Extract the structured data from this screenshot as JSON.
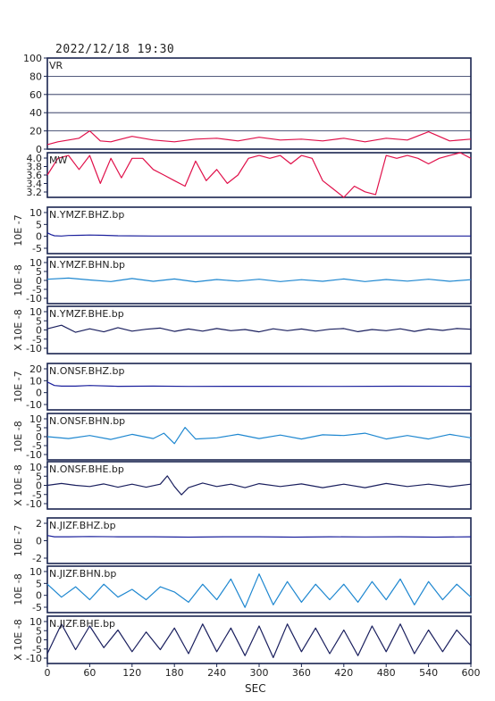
{
  "title": "2022/12/18 19:30",
  "xlabel": "SEC",
  "x_ticks": [
    "0",
    "60",
    "120",
    "180",
    "240",
    "300",
    "360",
    "420",
    "480",
    "540",
    "600"
  ],
  "chart_data": [
    {
      "type": "line",
      "name": "VR",
      "color": "#e0104a",
      "ylim": [
        0,
        100
      ],
      "yticks": [
        "100",
        "80",
        "60",
        "40",
        "20",
        "0"
      ],
      "side_label": "",
      "x": [
        0,
        15,
        30,
        45,
        60,
        75,
        90,
        120,
        150,
        180,
        210,
        240,
        270,
        300,
        330,
        360,
        390,
        420,
        450,
        480,
        510,
        540,
        570,
        600
      ],
      "values": [
        5,
        8,
        10,
        12,
        20,
        9,
        8,
        14,
        10,
        8,
        11,
        12,
        9,
        13,
        10,
        11,
        9,
        12,
        8,
        12,
        10,
        19,
        9,
        11
      ]
    },
    {
      "type": "line",
      "name": "MW",
      "color": "#e0104a",
      "ylim": [
        3.2,
        4.0
      ],
      "yticks": [
        "4.0",
        "3.8",
        "3.6",
        "3.4",
        "3.2"
      ],
      "side_label": "",
      "x": [
        0,
        15,
        30,
        45,
        60,
        75,
        90,
        105,
        120,
        135,
        150,
        165,
        180,
        195,
        210,
        225,
        240,
        255,
        270,
        285,
        300,
        315,
        330,
        345,
        360,
        375,
        390,
        405,
        420,
        435,
        450,
        465,
        480,
        495,
        510,
        525,
        540,
        555,
        570,
        585,
        600
      ],
      "values": [
        3.6,
        3.9,
        3.95,
        3.7,
        3.95,
        3.45,
        3.9,
        3.55,
        3.9,
        3.9,
        3.7,
        3.6,
        3.5,
        3.4,
        3.85,
        3.5,
        3.7,
        3.45,
        3.6,
        3.9,
        3.95,
        3.9,
        3.95,
        3.8,
        3.95,
        3.9,
        3.5,
        3.35,
        3.2,
        3.4,
        3.3,
        3.25,
        3.95,
        3.9,
        3.95,
        3.9,
        3.8,
        3.9,
        3.95,
        4.0,
        3.9
      ]
    },
    {
      "type": "line",
      "name": "N.YMZF.BHZ.bp",
      "color": "#1a1f9c",
      "ylim": [
        -7,
        12
      ],
      "yticks": [
        "10",
        "5",
        "0",
        "-5"
      ],
      "side_label": "10E -7",
      "x": [
        0,
        5,
        10,
        20,
        30,
        45,
        60,
        80,
        100,
        150,
        200,
        300,
        400,
        500,
        600
      ],
      "values": [
        1.5,
        0.8,
        0.3,
        0.2,
        0.4,
        0.5,
        0.6,
        0.5,
        0.3,
        0.2,
        0.2,
        0.2,
        0.2,
        0.2,
        0.2
      ]
    },
    {
      "type": "line",
      "name": "N.YMZF.BHN.bp",
      "color": "#1e87d0",
      "ylim": [
        -10,
        10
      ],
      "yticks": [
        "10",
        "5",
        "0",
        "-5",
        "-10"
      ],
      "side_label": "10E -8",
      "x": [
        0,
        30,
        60,
        90,
        120,
        150,
        180,
        210,
        240,
        270,
        300,
        330,
        360,
        390,
        420,
        450,
        480,
        510,
        540,
        570,
        600
      ],
      "values": [
        0.5,
        1,
        0.2,
        -0.5,
        0.8,
        -0.4,
        0.6,
        -0.6,
        0.4,
        -0.3,
        0.5,
        -0.5,
        0.3,
        -0.4,
        0.6,
        -0.5,
        0.4,
        -0.3,
        0.5,
        -0.4,
        0.3
      ]
    },
    {
      "type": "line",
      "name": "N.YMZF.BHE.bp",
      "color": "#1a1f5e",
      "ylim": [
        -10,
        10
      ],
      "yticks": [
        "10",
        "5",
        "0",
        "-5",
        "-10"
      ],
      "side_label": "X 10E -8",
      "x": [
        0,
        20,
        40,
        60,
        80,
        100,
        120,
        140,
        160,
        180,
        200,
        220,
        240,
        260,
        280,
        300,
        320,
        340,
        360,
        380,
        400,
        420,
        440,
        460,
        480,
        500,
        520,
        540,
        560,
        580,
        600
      ],
      "values": [
        0.5,
        2,
        -1,
        0.5,
        -0.8,
        1,
        -0.5,
        0.3,
        0.8,
        -0.6,
        0.4,
        -0.5,
        0.6,
        -0.3,
        0.2,
        -0.8,
        0.5,
        -0.3,
        0.4,
        -0.5,
        0.3,
        0.6,
        -0.7,
        0.2,
        -0.3,
        0.5,
        -0.6,
        0.4,
        -0.2,
        0.6,
        0.3
      ]
    },
    {
      "type": "line",
      "name": "N.ONSF.BHZ.bp",
      "color": "#1a1f9c",
      "ylim": [
        -20,
        20
      ],
      "yticks": [
        "20",
        "10",
        "0",
        "-10"
      ],
      "side_label": "10E -7",
      "x": [
        0,
        10,
        20,
        40,
        60,
        100,
        150,
        200,
        300,
        400,
        500,
        600
      ],
      "values": [
        4,
        1,
        0.5,
        0.5,
        1,
        0.3,
        0.5,
        0.2,
        0.3,
        0.2,
        0.4,
        0.3
      ]
    },
    {
      "type": "line",
      "name": "N.ONSF.BHN.bp",
      "color": "#1e87d0",
      "ylim": [
        -10,
        10
      ],
      "yticks": [
        "10",
        "5",
        "0",
        "-5",
        "-10"
      ],
      "side_label": "10E -8",
      "x": [
        0,
        30,
        60,
        90,
        120,
        150,
        165,
        180,
        195,
        210,
        240,
        270,
        300,
        330,
        360,
        390,
        420,
        450,
        480,
        510,
        540,
        570,
        600
      ],
      "values": [
        0,
        -0.8,
        0.5,
        -1.2,
        1,
        -0.8,
        1.5,
        -3,
        4,
        -1,
        -0.5,
        1,
        -0.8,
        0.7,
        -1,
        0.8,
        0.5,
        1.5,
        -1,
        0.5,
        -1,
        1,
        -0.5
      ]
    },
    {
      "type": "line",
      "name": "N.ONSF.BHE.bp",
      "color": "#1a1f5e",
      "ylim": [
        -10,
        10
      ],
      "yticks": [
        "10",
        "5",
        "0",
        "-5",
        "-10"
      ],
      "side_label": "X 10E -8",
      "x": [
        0,
        20,
        40,
        60,
        80,
        100,
        120,
        140,
        160,
        170,
        180,
        190,
        200,
        220,
        240,
        260,
        280,
        300,
        330,
        360,
        390,
        420,
        450,
        480,
        510,
        540,
        570,
        600
      ],
      "values": [
        0,
        0.8,
        0,
        -0.5,
        0.6,
        -0.8,
        0.5,
        -0.8,
        0.5,
        4,
        -0.5,
        -4,
        -1,
        1,
        -0.5,
        0.5,
        -1,
        0.7,
        -0.5,
        0.6,
        -1,
        0.5,
        -1,
        0.8,
        -0.5,
        0.5,
        -0.6,
        0.5
      ]
    },
    {
      "type": "line",
      "name": "N.JIZF.BHZ.bp",
      "color": "#1a1f9c",
      "ylim": [
        -4,
        3
      ],
      "yticks": [
        "2",
        "0",
        "-2"
      ],
      "side_label": "10E -7",
      "x": [
        0,
        10,
        30,
        60,
        100,
        150,
        200,
        250,
        300,
        350,
        400,
        450,
        500,
        550,
        600
      ],
      "values": [
        0.3,
        0.1,
        0.1,
        0.15,
        0.1,
        0.1,
        0.05,
        0.1,
        0.1,
        0.05,
        0.1,
        0.08,
        0.1,
        0.05,
        0.1
      ]
    },
    {
      "type": "line",
      "name": "N.JIZF.BHN.bp",
      "color": "#1e87d0",
      "ylim": [
        -8,
        10
      ],
      "yticks": [
        "10",
        "5",
        "0",
        "-5"
      ],
      "side_label": "10E -8",
      "x": [
        0,
        20,
        40,
        60,
        80,
        100,
        120,
        140,
        160,
        180,
        200,
        220,
        240,
        260,
        280,
        300,
        320,
        340,
        360,
        380,
        400,
        420,
        440,
        460,
        480,
        500,
        520,
        540,
        560,
        580,
        600
      ],
      "values": [
        3,
        -2,
        2,
        -3,
        3,
        -2,
        1,
        -3,
        2,
        0,
        -4,
        3,
        -3,
        5,
        -6,
        7,
        -5,
        4,
        -4,
        3,
        -3,
        3,
        -4,
        4,
        -3,
        5,
        -5,
        4,
        -3,
        3,
        -2
      ]
    },
    {
      "type": "line",
      "name": "N.JIZF.BHE.bp",
      "color": "#1a1f5e",
      "ylim": [
        -12,
        12
      ],
      "yticks": [
        "10",
        "5",
        "0",
        "-5",
        "-10"
      ],
      "side_label": "X 10E -8",
      "x": [
        0,
        20,
        40,
        60,
        80,
        100,
        120,
        140,
        160,
        180,
        200,
        220,
        240,
        260,
        280,
        300,
        320,
        340,
        360,
        380,
        400,
        420,
        440,
        460,
        480,
        500,
        520,
        540,
        560,
        580,
        600
      ],
      "values": [
        -7,
        8,
        -5,
        7,
        -4,
        5,
        -6,
        4,
        -5,
        6,
        -7,
        8,
        -6,
        6,
        -8,
        7,
        -9,
        8,
        -6,
        6,
        -7,
        5,
        -8,
        7,
        -6,
        8,
        -7,
        5,
        -6,
        5,
        -3
      ]
    }
  ]
}
